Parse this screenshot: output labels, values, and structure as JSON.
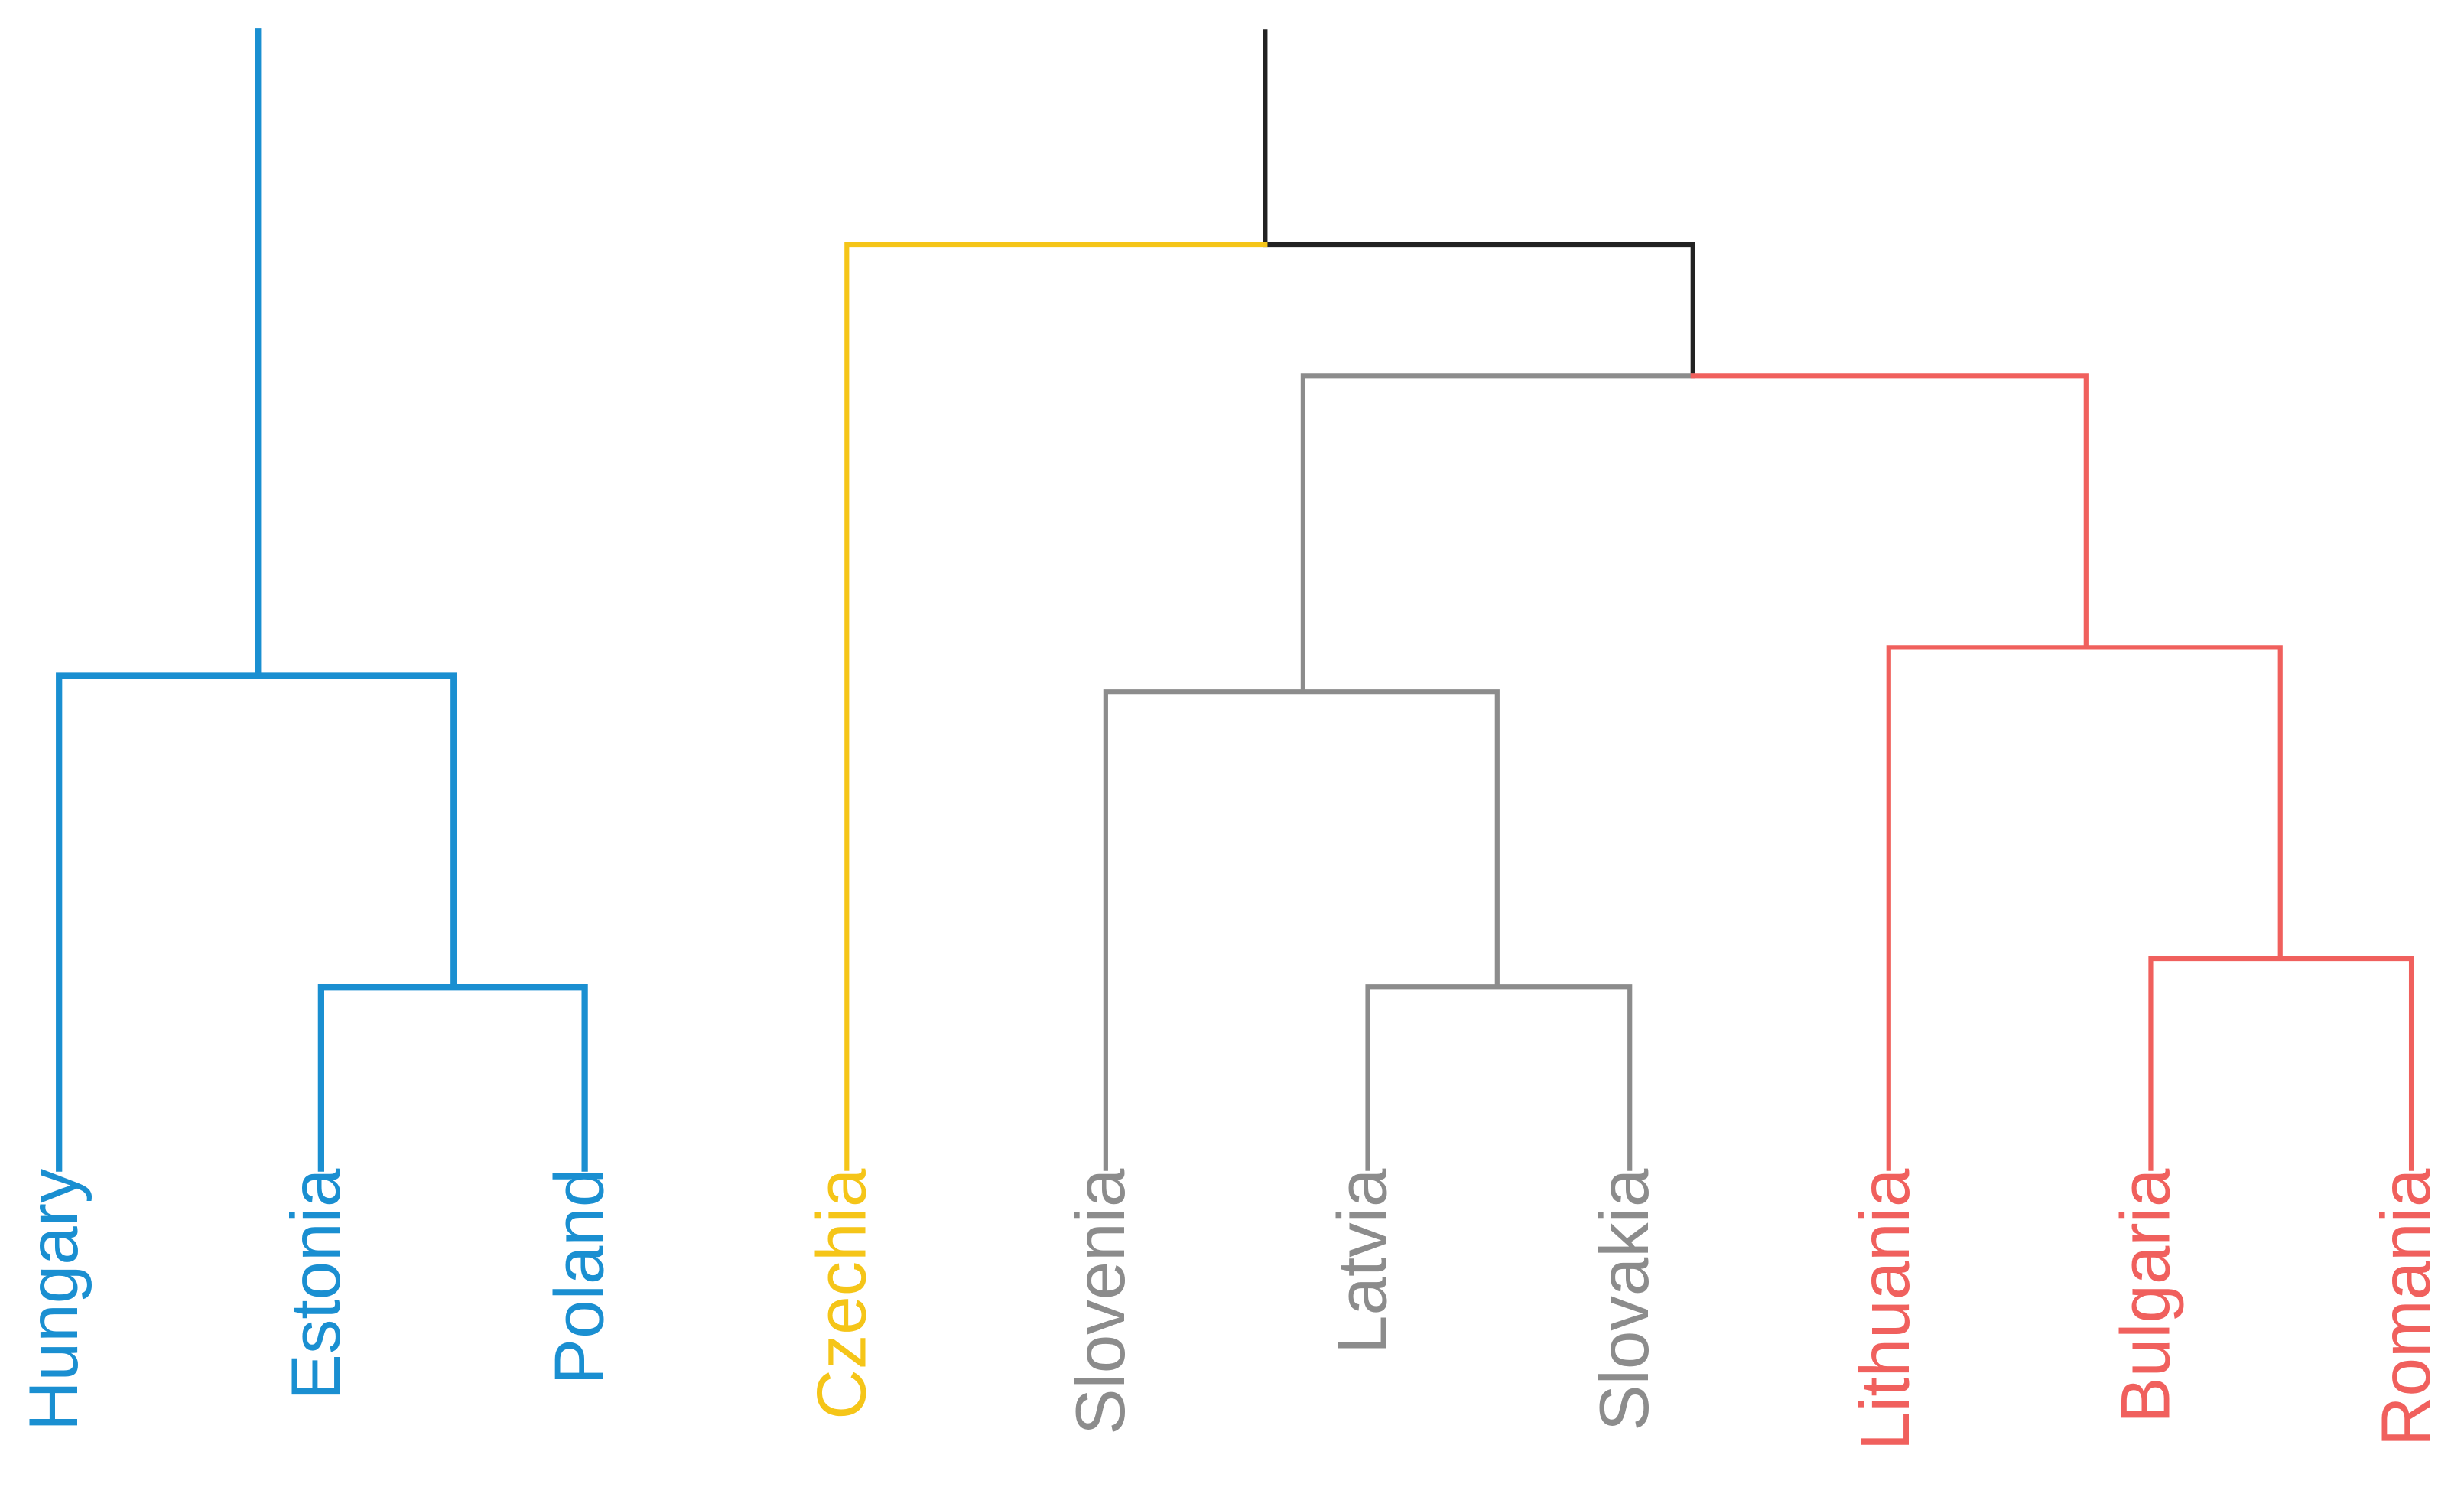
{
  "leaves": [
    {
      "label": "Hungary",
      "color": "#1a8fd1"
    },
    {
      "label": "Estonia",
      "color": "#1a8fd1"
    },
    {
      "label": "Poland",
      "color": "#1a8fd1"
    },
    {
      "label": "Czechia",
      "color": "#f5c518"
    },
    {
      "label": "Slovenia",
      "color": "#8c8c8c"
    },
    {
      "label": "Latvia",
      "color": "#8c8c8c"
    },
    {
      "label": "Slovakia",
      "color": "#8c8c8c"
    },
    {
      "label": "Lithuania",
      "color": "#f0605d"
    },
    {
      "label": "Bulgaria",
      "color": "#f0605d"
    },
    {
      "label": "Romania",
      "color": "#f0605d"
    }
  ]
}
